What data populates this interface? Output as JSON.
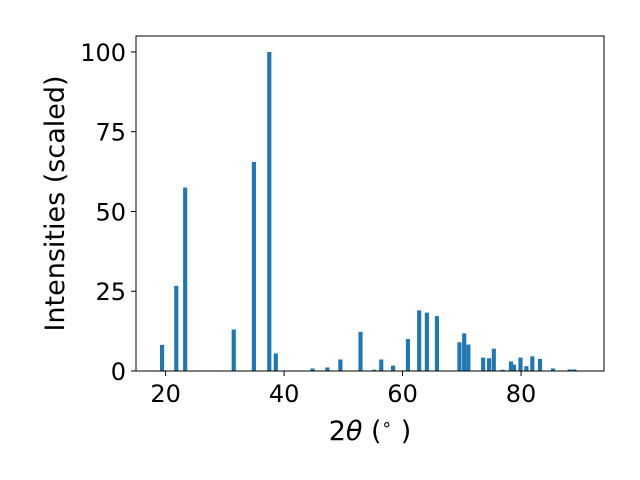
{
  "chart_data": {
    "type": "bar",
    "title": "",
    "xlabel_prefix": "2",
    "xlabel_symbol": "θ",
    "xlabel_suffix": " (",
    "xlabel_degree": "∘",
    "xlabel_close": " )",
    "ylabel": "Intensities (scaled)",
    "xlim": [
      15,
      94
    ],
    "ylim": [
      0,
      105
    ],
    "xticks": [
      20,
      40,
      60,
      80
    ],
    "yticks": [
      0,
      25,
      50,
      75,
      100
    ],
    "bar_width": 0.7,
    "color": "#1f77b4",
    "x": [
      19.4,
      21.8,
      23.3,
      31.5,
      34.9,
      37.5,
      38.6,
      44.8,
      47.3,
      49.5,
      52.9,
      55.2,
      56.4,
      58.4,
      60.9,
      62.8,
      64.1,
      65.8,
      69.6,
      70.4,
      71.1,
      73.6,
      74.6,
      75.4,
      76.9,
      78.3,
      78.8,
      79.9,
      80.9,
      81.9,
      83.2,
      85.4,
      88.2,
      89.0
    ],
    "values": [
      8.2,
      26.7,
      57.5,
      13.0,
      65.5,
      100.0,
      5.5,
      0.8,
      1.1,
      3.6,
      12.3,
      0.4,
      3.6,
      1.7,
      10.0,
      19.0,
      18.3,
      17.2,
      9.0,
      11.8,
      8.3,
      4.2,
      4.0,
      7.0,
      0.4,
      3.0,
      2.0,
      4.2,
      1.5,
      4.6,
      3.8,
      0.8,
      0.5,
      0.5
    ]
  }
}
